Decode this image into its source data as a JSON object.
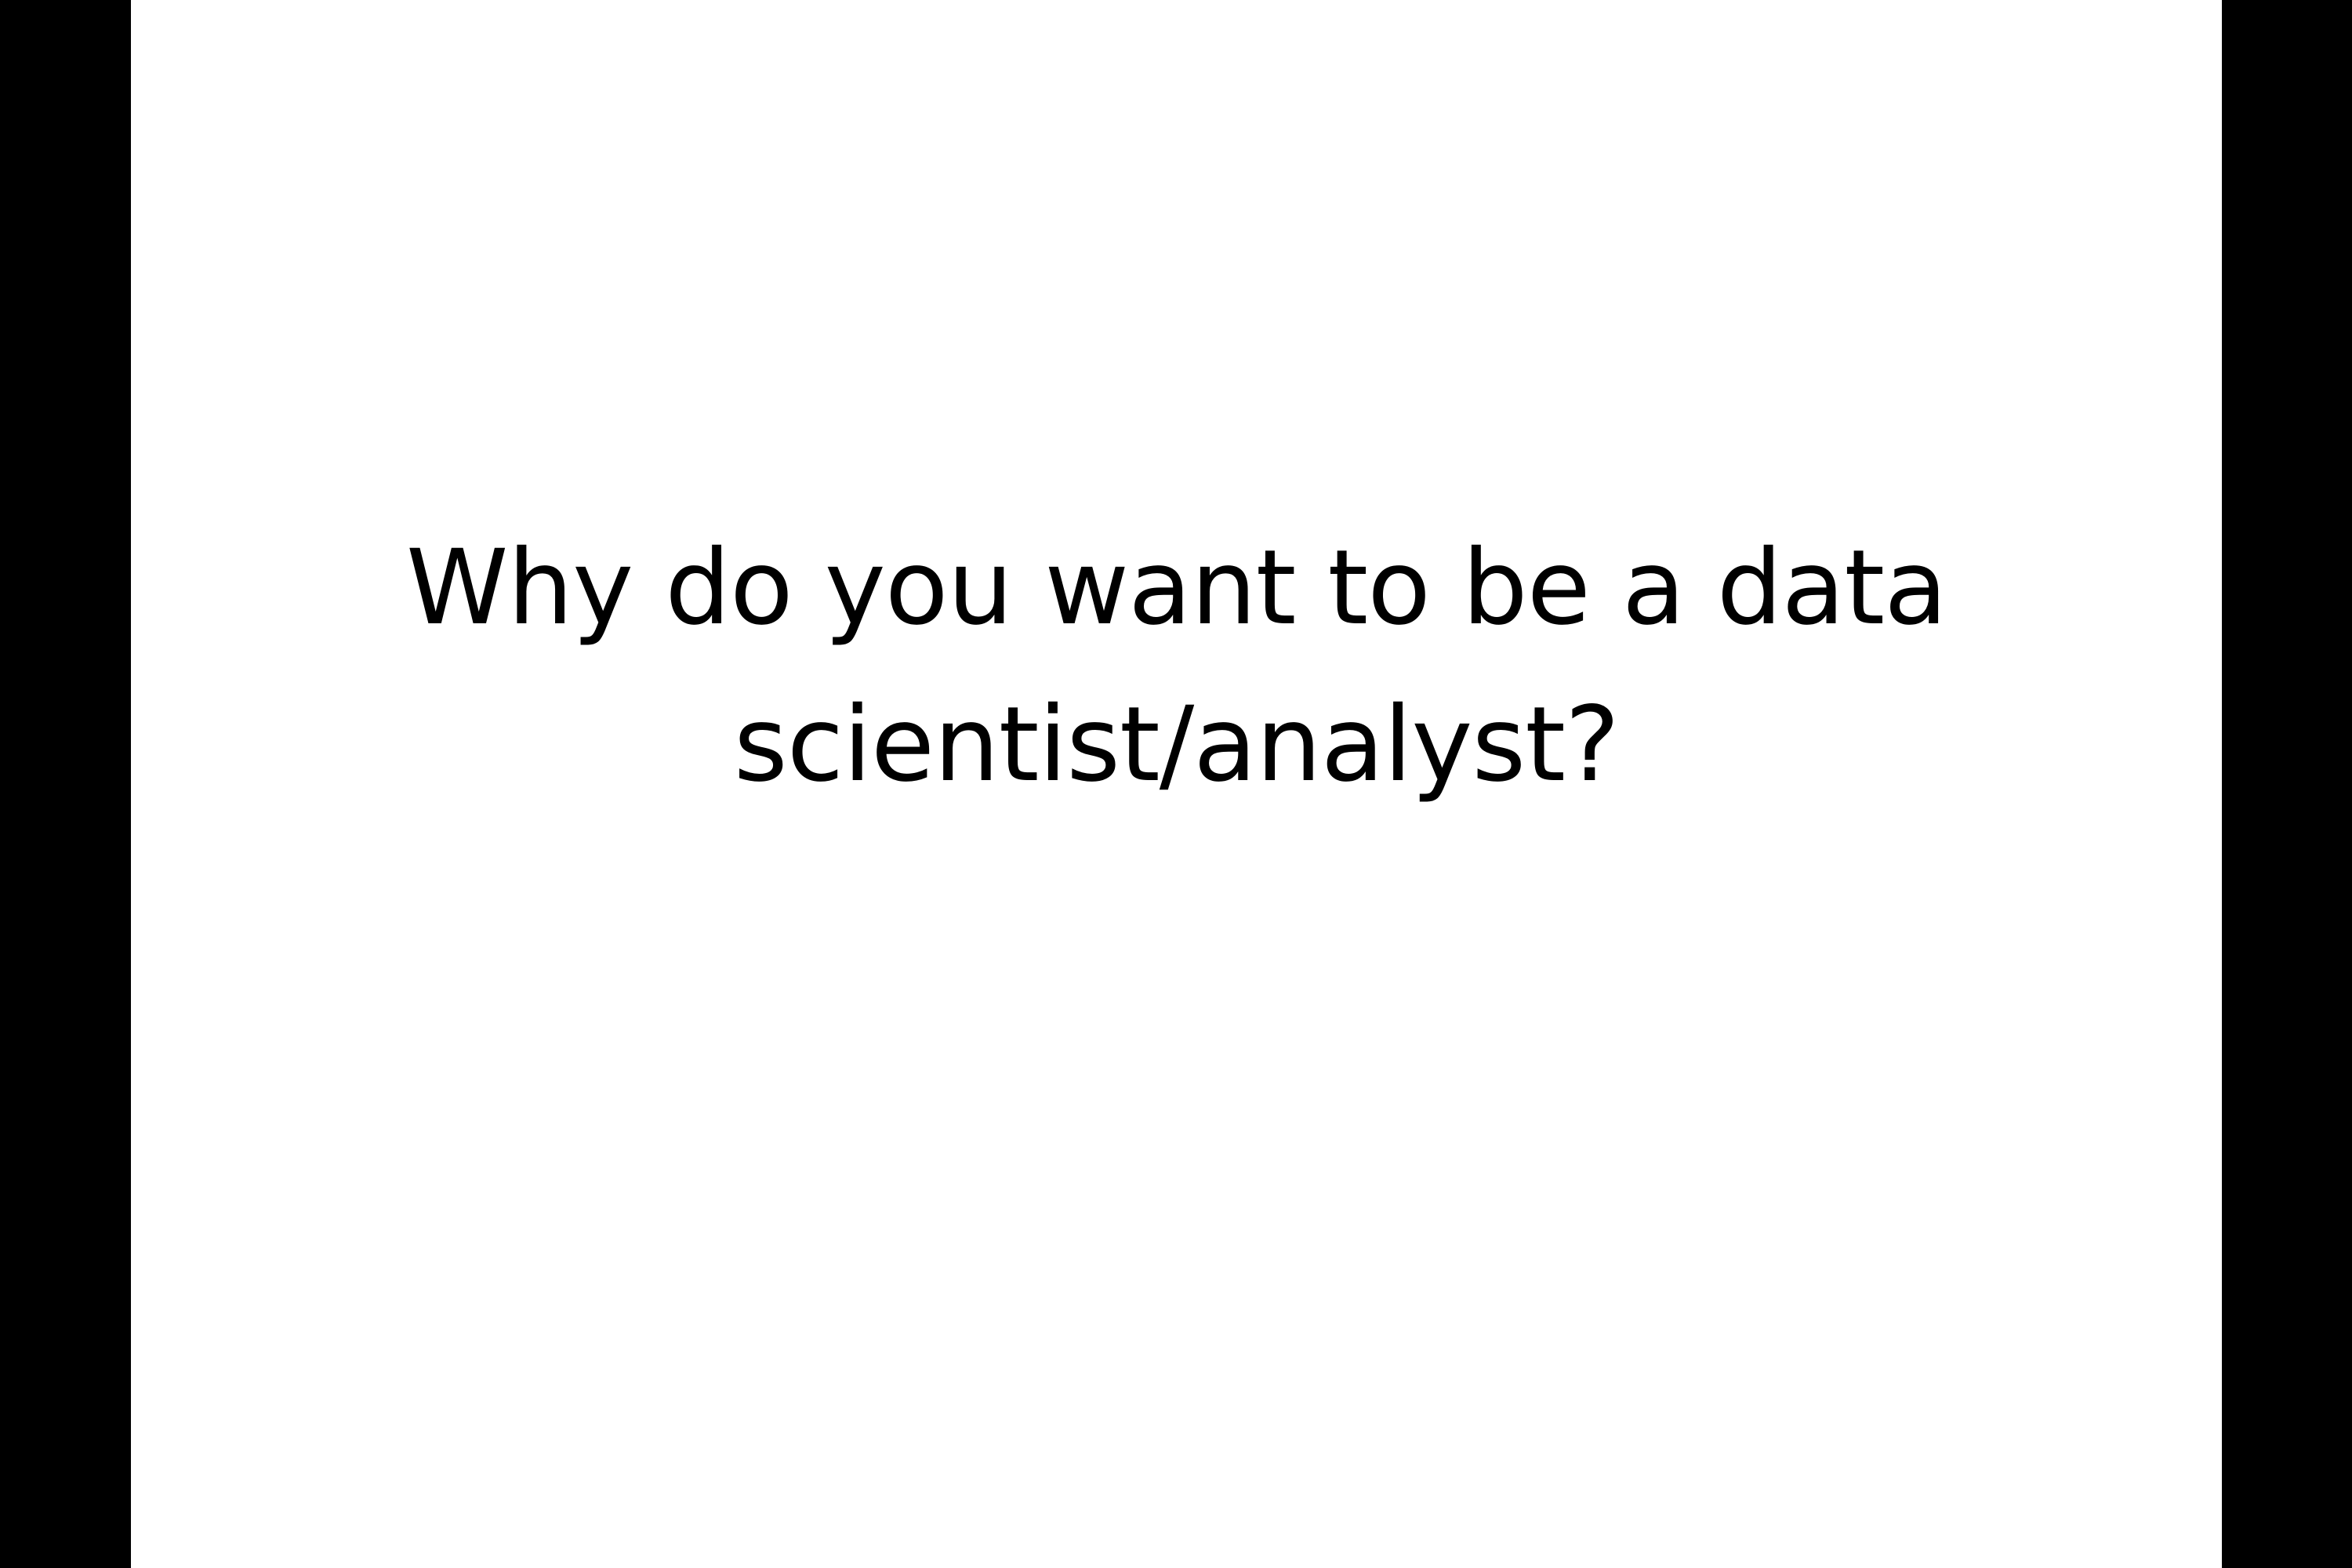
{
  "slide": {
    "title_lines": [
      "Why do you want to be a data",
      "scientist/analyst?"
    ]
  },
  "colors": {
    "letterbox": "#000000",
    "slide_background": "#ffffff",
    "text": "#000000"
  }
}
